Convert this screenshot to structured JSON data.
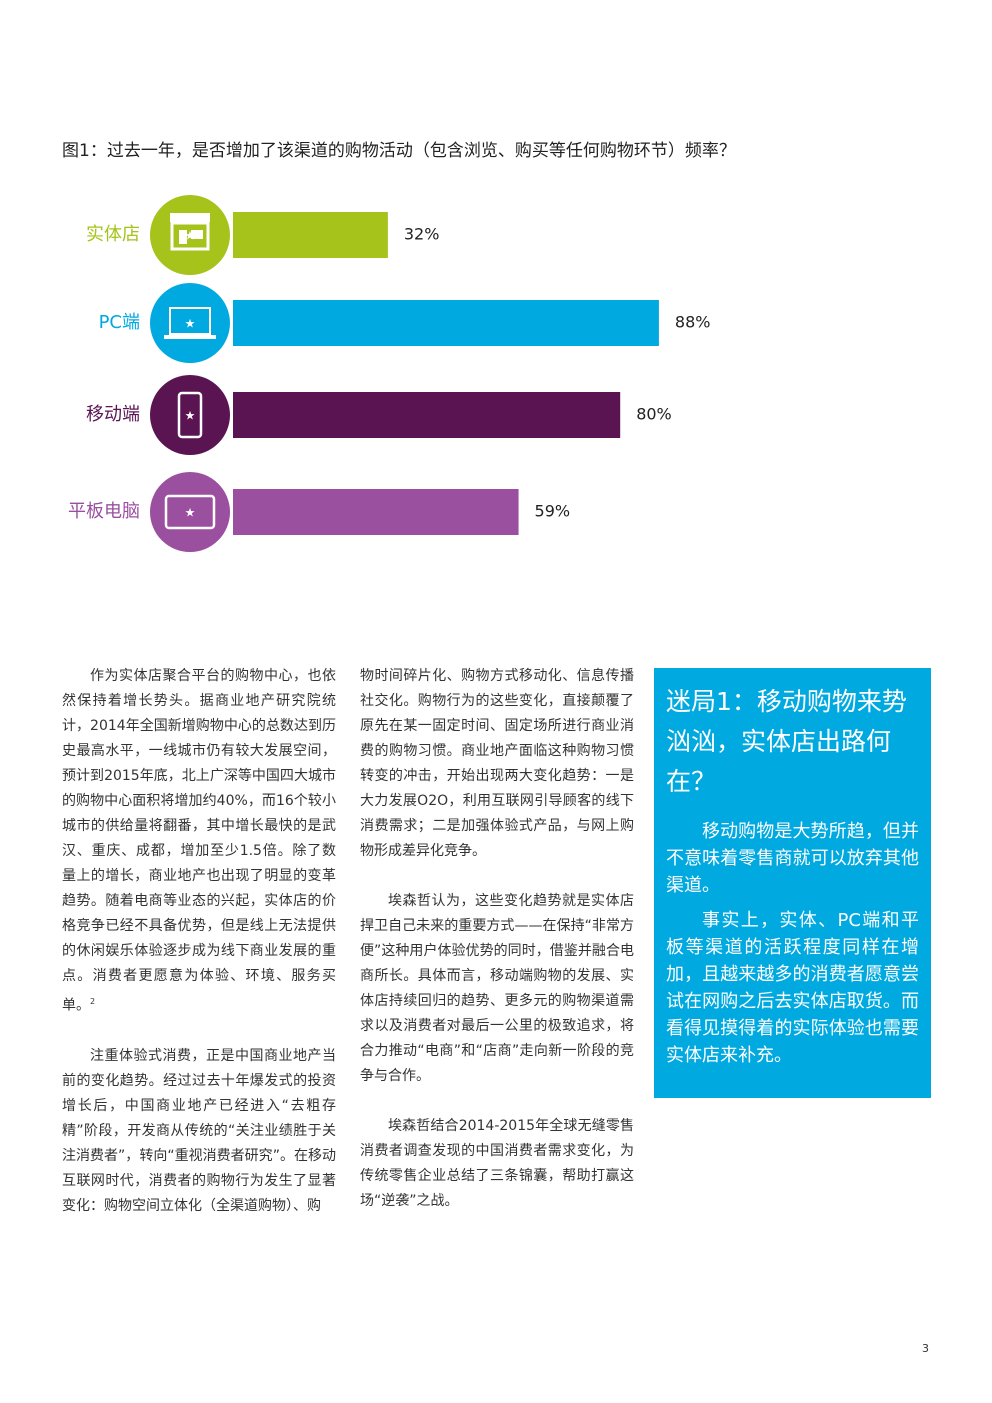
{
  "chart_data": {
    "type": "bar",
    "orientation": "horizontal",
    "title": "图1：过去一年，是否增加了该渠道的购物活动（包含浏览、购买等任何购物环节）频率？",
    "categories": [
      "实体店",
      "PC端",
      "移动端",
      "平板电脑"
    ],
    "values": [
      32,
      88,
      80,
      59
    ],
    "value_labels": [
      "32%",
      "88%",
      "80%",
      "59%"
    ],
    "colors": [
      "#a5c31b",
      "#00a9e0",
      "#5b1452",
      "#9a4f9f"
    ]
  },
  "body": {
    "column1": [
      "作为实体店聚合平台的购物中心，也依然保持着增长势头。据商业地产研究院统计，2014年全国新增购物中心的总数达到历史最高水平，一线城市仍有较大发展空间，预计到2015年底，北上广深等中国四大城市的购物中心面积将增加约40%，而16个较小城市的供给量将翻番，其中增长最快的是武汉、重庆、成都，增加至少1.5倍。除了数量上的增长，商业地产也出现了明显的变革趋势。随着电商等业态的兴起，实体店的价格竞争已经不具备优势，但是线上无法提供的休闲娱乐体验逐步成为线下商业发展的重点。消费者更愿意为体验、环境、服务买单。",
      "注重体验式消费，正是中国商业地产当前的变化趋势。经过过去十年爆发式的投资增长后，中国商业地产已经进入“去粗存精”阶段，开发商从传统的“关注业绩胜于关注消费者”，转向“重视消费者研究”。在移动互联网时代，消费者的购物行为发生了显著变化：购物空间立体化（全渠道购物）、购"
    ],
    "footnote_ref": "2",
    "column2": [
      "物时间碎片化、购物方式移动化、信息传播社交化。购物行为的这些变化，直接颠覆了原先在某一固定时间、固定场所进行商业消费的购物习惯。商业地产面临这种购物习惯转变的冲击，开始出现两大变化趋势：一是大力发展O2O，利用互联网引导顾客的线下消费需求；二是加强体验式产品，与网上购物形成差异化竞争。",
      "埃森哲认为，这些变化趋势就是实体店捍卫自己未来的重要方式——在保持“非常方便”这种用户体验优势的同时，借鉴并融合电商所长。具体而言，移动端购物的发展、实体店持续回归的趋势、更多元的购物渠道需求以及消费者对最后一公里的极致追求，将合力推动“电商”和“店商”走向新一阶段的竞争与合作。",
      "埃森哲结合2014-2015年全球无缝零售消费者调查发现的中国消费者需求变化，为传统零售企业总结了三条锦囊，帮助打赢这场“逆袭”之战。"
    ],
    "sidebar": {
      "heading": "迷局1：移动购物来势汹汹，实体店出路何在？",
      "paragraphs": [
        "移动购物是大势所趋，但并不意味着零售商就可以放弃其他渠道。",
        "事实上，实体、PC端和平板等渠道的活跃程度同样在增加，且越来越多的消费者愿意尝试在网购之后去实体店取货。而看得见摸得着的实际体验也需要实体店来补充。"
      ]
    }
  },
  "page_number": "3"
}
